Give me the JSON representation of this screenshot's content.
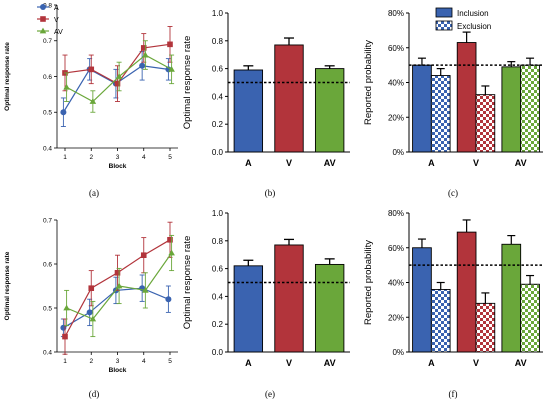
{
  "colors": {
    "A": "#3a63b0",
    "V": "#b2343b",
    "AV": "#6aa73a"
  },
  "chart_data": [
    {
      "id": "a",
      "panel_label": "(a)",
      "type": "line",
      "x": [
        1,
        2,
        3,
        4,
        5
      ],
      "xticks": [
        "1",
        "2",
        "3",
        "4",
        "5"
      ],
      "xlabel": "Block",
      "ylabel": "Optimal response rate",
      "ylim": [
        0.4,
        0.8
      ],
      "yticks": [
        "0.4",
        "0.5",
        "0.6",
        "0.7",
        "0.8"
      ],
      "legend": "top-left",
      "series": [
        {
          "name": "A",
          "values": [
            0.5,
            0.62,
            0.58,
            0.63,
            0.62
          ],
          "err": [
            0.04,
            0.03,
            0.04,
            0.04,
            0.03
          ]
        },
        {
          "name": "V",
          "values": [
            0.61,
            0.62,
            0.58,
            0.68,
            0.69
          ],
          "err": [
            0.05,
            0.04,
            0.05,
            0.04,
            0.05
          ]
        },
        {
          "name": "AV",
          "values": [
            0.57,
            0.53,
            0.6,
            0.66,
            0.62
          ],
          "err": [
            0.04,
            0.03,
            0.04,
            0.04,
            0.04
          ]
        }
      ]
    },
    {
      "id": "b",
      "panel_label": "(b)",
      "type": "bar",
      "categories": [
        "A",
        "V",
        "AV"
      ],
      "values": [
        0.59,
        0.77,
        0.6
      ],
      "err": [
        0.03,
        0.05,
        0.02
      ],
      "ylabel": "Optimal response rate",
      "ylim": [
        0.0,
        1.0
      ],
      "yticks": [
        "0.0",
        "0.2",
        "0.4",
        "0.6",
        "0.8",
        "1.0"
      ],
      "reference_line": 0.5
    },
    {
      "id": "c",
      "panel_label": "(c)",
      "type": "bar",
      "categories": [
        "A",
        "V",
        "AV"
      ],
      "series": [
        {
          "name": "Inclusion",
          "values": [
            50,
            63,
            49
          ],
          "err": [
            4,
            6,
            3
          ]
        },
        {
          "name": "Exclusion",
          "values": [
            44,
            33,
            50
          ],
          "err": [
            4,
            5,
            4
          ]
        }
      ],
      "ylabel": "Reported probability",
      "ylim": [
        0,
        80
      ],
      "yticks": [
        "0%",
        "20%",
        "40%",
        "60%",
        "80%"
      ],
      "reference_line": 50,
      "legend": "top-right"
    },
    {
      "id": "d",
      "panel_label": "(d)",
      "type": "line",
      "x": [
        1,
        2,
        3,
        4,
        5
      ],
      "xticks": [
        "1",
        "2",
        "3",
        "4",
        "5"
      ],
      "xlabel": "Block",
      "ylabel": "Optimal response rate",
      "ylim": [
        0.4,
        0.7
      ],
      "yticks": [
        "0.4",
        "0.5",
        "0.6",
        "0.7"
      ],
      "series": [
        {
          "name": "A",
          "values": [
            0.455,
            0.49,
            0.54,
            0.545,
            0.52
          ],
          "err": [
            0.02,
            0.03,
            0.03,
            0.03,
            0.03
          ]
        },
        {
          "name": "V",
          "values": [
            0.435,
            0.545,
            0.58,
            0.62,
            0.655
          ],
          "err": [
            0.04,
            0.04,
            0.04,
            0.04,
            0.04
          ]
        },
        {
          "name": "AV",
          "values": [
            0.5,
            0.475,
            0.55,
            0.54,
            0.625
          ],
          "err": [
            0.04,
            0.04,
            0.04,
            0.04,
            0.04
          ]
        }
      ]
    },
    {
      "id": "e",
      "panel_label": "(e)",
      "type": "bar",
      "categories": [
        "A",
        "V",
        "AV"
      ],
      "values": [
        0.62,
        0.77,
        0.63
      ],
      "err": [
        0.04,
        0.04,
        0.04
      ],
      "ylabel": "Optimal response rate",
      "ylim": [
        0.0,
        1.0
      ],
      "yticks": [
        "0.0",
        "0.2",
        "0.4",
        "0.6",
        "0.8",
        "1.0"
      ],
      "reference_line": 0.5
    },
    {
      "id": "f",
      "panel_label": "(f)",
      "type": "bar",
      "categories": [
        "A",
        "V",
        "AV"
      ],
      "series": [
        {
          "name": "Inclusion",
          "values": [
            60,
            69,
            62
          ],
          "err": [
            5,
            7,
            5
          ]
        },
        {
          "name": "Exclusion",
          "values": [
            36,
            28,
            39
          ],
          "err": [
            4,
            6,
            5
          ]
        }
      ],
      "ylabel": "Reported probability",
      "ylim": [
        0,
        80
      ],
      "yticks": [
        "0%",
        "20%",
        "40%",
        "60%",
        "80%"
      ],
      "reference_line": 50
    }
  ]
}
